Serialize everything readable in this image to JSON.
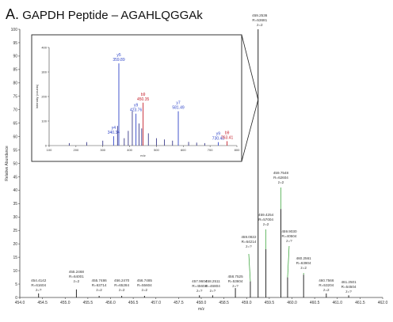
{
  "figure": {
    "panel_letter": "A.",
    "title": "GAPDH Peptide – AGAHLQGGAk"
  },
  "chart_data": [
    {
      "type": "line",
      "subtype": "mass-spectrum",
      "title": "",
      "xlabel": "m/z",
      "ylabel": "Relative Abundance",
      "xlim": [
        454.0,
        462.0
      ],
      "ylim": [
        0,
        100
      ],
      "x_ticks": [
        "454.0",
        "454.5",
        "455.0",
        "455.5",
        "456.0",
        "456.5",
        "457.0",
        "457.5",
        "458.0",
        "458.5",
        "459.0",
        "459.5",
        "460.0",
        "460.5",
        "461.0",
        "461.5",
        "462.0"
      ],
      "y_ticks": [
        "0",
        "5",
        "10",
        "15",
        "20",
        "25",
        "30",
        "35",
        "40",
        "45",
        "50",
        "55",
        "60",
        "65",
        "70",
        "75",
        "80",
        "85",
        "90",
        "95",
        "100"
      ],
      "peaks": [
        {
          "mz": 454.4142,
          "intensity": 1.5,
          "label": [
            "454.4142",
            "R=61604",
            "z=?"
          ]
        },
        {
          "mz": 455.2468,
          "intensity": 3.0,
          "label": [
            "455.2468",
            "R=64001",
            "z=2"
          ]
        },
        {
          "mz": 455.7486,
          "intensity": 0.6,
          "label": [
            "455.7486",
            "R=63714",
            "z=2"
          ]
        },
        {
          "mz": 456.247,
          "intensity": 0.6,
          "label": [
            "456.2470",
            "R=65284",
            "z=2"
          ]
        },
        {
          "mz": 456.7485,
          "intensity": 0.6,
          "label": [
            "456.7485",
            "R=55604",
            "z=2"
          ]
        },
        {
          "mz": 457.9604,
          "intensity": 0.8,
          "label": [
            "457.9604",
            "R=45604",
            "z=?"
          ]
        },
        {
          "mz": 458.2511,
          "intensity": 0.8,
          "label": [
            "458.2511",
            "R=46804",
            "z=?"
          ]
        },
        {
          "mz": 458.7525,
          "intensity": 3.5,
          "label": [
            "458.7525",
            "R=53604",
            "z=?"
          ]
        },
        {
          "mz": 459.0822,
          "intensity": 6.0,
          "label": [
            "459.0822",
            "R=64214",
            "z=?"
          ]
        },
        {
          "mz": 459.2536,
          "intensity": 100.0,
          "label": [
            "459.2536",
            "R=53681",
            "z=2"
          ]
        },
        {
          "mz": 459.4254,
          "intensity": 18.0,
          "label": [
            "459.4254",
            "R=57004",
            "z=2"
          ]
        },
        {
          "mz": 459.7548,
          "intensity": 33.0,
          "label": [
            "459.7548",
            "R=62604",
            "z=2"
          ]
        },
        {
          "mz": 459.903,
          "intensity": 7.5,
          "label": [
            "459.9030",
            "R=40504",
            "z=?"
          ]
        },
        {
          "mz": 460.2561,
          "intensity": 8.5,
          "label": [
            "460.2561",
            "R=63904",
            "z=2"
          ]
        },
        {
          "mz": 460.7566,
          "intensity": 1.5,
          "label": [
            "460.7566",
            "R=53204",
            "z=2"
          ]
        },
        {
          "mz": 461.2501,
          "intensity": 0.8,
          "label": [
            "461.2501",
            "R=54504",
            "z=?"
          ]
        }
      ]
    },
    {
      "type": "bar",
      "subtype": "ms/ms-inset",
      "xlabel": "m/z",
      "ylabel": "Intensity (counts)",
      "xlim": [
        100,
        800
      ],
      "ylim": [
        0,
        400
      ],
      "x_ticks": [
        "100",
        "200",
        "300",
        "400",
        "500",
        "600",
        "700",
        "800"
      ],
      "y_ticks": [
        "0",
        "100",
        "200",
        "300",
        "400"
      ],
      "peaks": [
        {
          "mz": 175,
          "intensity": 10
        },
        {
          "mz": 240,
          "intensity": 14
        },
        {
          "mz": 300,
          "intensity": 20
        },
        {
          "mz": 340.34,
          "intensity": 38,
          "label": [
            "y4",
            "340.34"
          ],
          "color": "#2f45c8"
        },
        {
          "mz": 355,
          "intensity": 80
        },
        {
          "mz": 359.89,
          "intensity": 335,
          "label": [
            "y5",
            "359.89"
          ],
          "color": "#2f45c8"
        },
        {
          "mz": 380,
          "intensity": 30
        },
        {
          "mz": 395,
          "intensity": 60
        },
        {
          "mz": 410,
          "intensity": 140
        },
        {
          "mz": 423.76,
          "intensity": 130,
          "label": [
            "y9",
            "423.76"
          ],
          "color": "#2f45c8"
        },
        {
          "mz": 435,
          "intensity": 90
        },
        {
          "mz": 445,
          "intensity": 70
        },
        {
          "mz": 450.35,
          "intensity": 175,
          "label": [
            "b9",
            "450.35"
          ],
          "color": "#c41e2a"
        },
        {
          "mz": 470,
          "intensity": 50
        },
        {
          "mz": 500,
          "intensity": 30
        },
        {
          "mz": 530,
          "intensity": 25
        },
        {
          "mz": 560,
          "intensity": 20
        },
        {
          "mz": 581.49,
          "intensity": 140,
          "label": [
            "y7",
            "581.49"
          ],
          "color": "#2f45c8"
        },
        {
          "mz": 620,
          "intensity": 15
        },
        {
          "mz": 650,
          "intensity": 12
        },
        {
          "mz": 680,
          "intensity": 10
        },
        {
          "mz": 730.43,
          "intensity": 14,
          "label": [
            "y9",
            "730.43"
          ],
          "color": "#2f45c8"
        },
        {
          "mz": 763.41,
          "intensity": 18,
          "label": [
            "b9",
            "763.41"
          ],
          "color": "#c41e2a"
        }
      ]
    }
  ],
  "colors": {
    "main_peak": "#111111",
    "callout": "#2a9d2a",
    "y_ion": "#2f45c8",
    "b_ion": "#c41e2a",
    "inset_peak": "#3a3a8a"
  }
}
